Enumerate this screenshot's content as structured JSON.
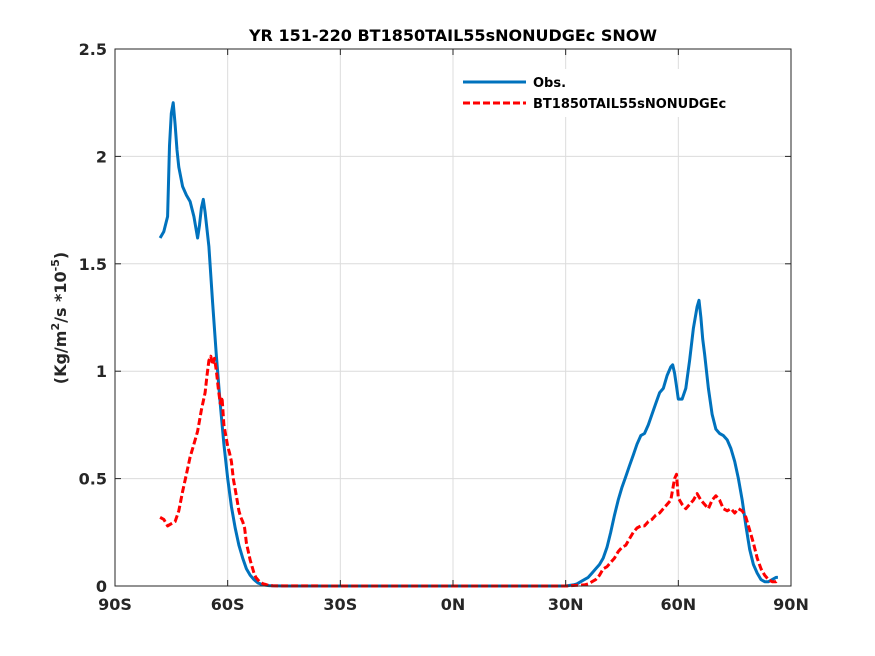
{
  "chart_data": {
    "type": "line",
    "title": "YR 151-220 BT1850TAIL55sNONUDGEc SNOW",
    "ylabel_parts": {
      "prefix": "(Kg/m",
      "sup1": "2",
      "mid": "/s *10",
      "sup2": "-5",
      "suffix": ")"
    },
    "xlabel": "",
    "xlim": [
      -90,
      90
    ],
    "ylim": [
      0,
      2.5
    ],
    "grid": true,
    "legend_position": "top-right",
    "x_ticks": [
      {
        "value": -90,
        "label": "90S"
      },
      {
        "value": -60,
        "label": "60S"
      },
      {
        "value": -30,
        "label": "30S"
      },
      {
        "value": 0,
        "label": "0N"
      },
      {
        "value": 30,
        "label": "30N"
      },
      {
        "value": 60,
        "label": "60N"
      },
      {
        "value": 90,
        "label": "90N"
      }
    ],
    "y_ticks": [
      {
        "value": 0,
        "label": "0"
      },
      {
        "value": 0.5,
        "label": "0.5"
      },
      {
        "value": 1,
        "label": "1"
      },
      {
        "value": 1.5,
        "label": "1.5"
      },
      {
        "value": 2,
        "label": "2"
      },
      {
        "value": 2.5,
        "label": "2.5"
      }
    ],
    "series": [
      {
        "name": "Obs.",
        "color": "#0072BD",
        "style": "solid",
        "x": [
          -78,
          -77,
          -76,
          -75.5,
          -75,
          -74.5,
          -74,
          -73.5,
          -73,
          -72,
          -71,
          -70,
          -69,
          -68,
          -67.5,
          -67,
          -66.5,
          -66,
          -65,
          -64,
          -63,
          -62,
          -61,
          -60,
          -59,
          -58,
          -57,
          -56,
          -55,
          -54,
          -53,
          -52,
          -51,
          -50,
          -49,
          -48,
          -45,
          -30,
          0,
          30,
          32,
          33,
          34,
          35,
          36,
          37,
          38,
          39,
          40,
          41,
          42,
          43,
          44,
          45,
          46,
          47,
          48,
          49,
          50,
          51,
          52,
          53,
          54,
          55,
          56,
          57,
          58,
          58.5,
          59,
          59.5,
          60,
          61,
          62,
          63,
          64,
          65,
          65.5,
          66,
          66.5,
          67,
          68,
          69,
          70,
          71,
          72,
          73,
          74,
          75,
          76,
          77,
          78,
          79,
          80,
          81,
          82,
          83,
          84,
          85,
          86,
          86.5
        ],
        "values": [
          1.62,
          1.65,
          1.72,
          2.05,
          2.2,
          2.25,
          2.15,
          2.03,
          1.95,
          1.86,
          1.82,
          1.79,
          1.72,
          1.62,
          1.68,
          1.76,
          1.8,
          1.74,
          1.58,
          1.32,
          1.07,
          0.85,
          0.66,
          0.5,
          0.37,
          0.27,
          0.19,
          0.13,
          0.08,
          0.05,
          0.03,
          0.015,
          0.008,
          0.004,
          0.002,
          0.001,
          0,
          0,
          0,
          0,
          0.005,
          0.01,
          0.02,
          0.03,
          0.04,
          0.06,
          0.08,
          0.1,
          0.13,
          0.18,
          0.25,
          0.33,
          0.4,
          0.46,
          0.51,
          0.56,
          0.61,
          0.66,
          0.7,
          0.71,
          0.75,
          0.8,
          0.85,
          0.9,
          0.92,
          0.98,
          1.02,
          1.03,
          0.99,
          0.93,
          0.87,
          0.87,
          0.92,
          1.05,
          1.2,
          1.3,
          1.33,
          1.25,
          1.15,
          1.08,
          0.92,
          0.8,
          0.73,
          0.71,
          0.7,
          0.68,
          0.64,
          0.58,
          0.5,
          0.4,
          0.28,
          0.17,
          0.1,
          0.06,
          0.03,
          0.02,
          0.02,
          0.03,
          0.04,
          0.04
        ],
        "note": ""
      },
      {
        "name": "BT1850TAIL55sNONUDGEc",
        "color": "#FF0000",
        "style": "dashed",
        "x": [
          -78,
          -77,
          -76,
          -75,
          -74,
          -73,
          -72,
          -71,
          -70,
          -69,
          -68,
          -67,
          -66,
          -65.5,
          -65,
          -64.5,
          -64,
          -63.5,
          -63,
          -62.5,
          -62,
          -61.5,
          -61,
          -60.5,
          -60,
          -59.5,
          -59,
          -58.5,
          -58,
          -57.5,
          -57,
          -56.5,
          -56,
          -55.5,
          -55,
          -54.5,
          -54,
          -53.5,
          -53,
          -52.5,
          -52,
          -51.5,
          -51,
          -50.5,
          -50,
          -49.5,
          -49,
          -48.5,
          -48,
          -30,
          0,
          30,
          35,
          36,
          37,
          38,
          39,
          40,
          41,
          42,
          43,
          44,
          45,
          46,
          47,
          48,
          49,
          50,
          51,
          52,
          53,
          54,
          55,
          56,
          57,
          58,
          58.5,
          59,
          59.5,
          60,
          61,
          62,
          63,
          64,
          65,
          66,
          67,
          68,
          69,
          70,
          71,
          72,
          73,
          74,
          75,
          76,
          77,
          78,
          79,
          80,
          81,
          82,
          83,
          84,
          85,
          86,
          86.5
        ],
        "values": [
          0.32,
          0.31,
          0.28,
          0.29,
          0.3,
          0.35,
          0.44,
          0.52,
          0.6,
          0.66,
          0.72,
          0.82,
          0.9,
          0.98,
          1.05,
          1.07,
          1.03,
          1.06,
          1.0,
          0.92,
          0.85,
          0.88,
          0.75,
          0.7,
          0.65,
          0.62,
          0.58,
          0.5,
          0.45,
          0.4,
          0.35,
          0.32,
          0.3,
          0.27,
          0.2,
          0.16,
          0.12,
          0.09,
          0.06,
          0.04,
          0.03,
          0.02,
          0.015,
          0.01,
          0.008,
          0.005,
          0.003,
          0.002,
          0.001,
          0,
          0,
          0,
          0.005,
          0.01,
          0.02,
          0.03,
          0.05,
          0.08,
          0.09,
          0.11,
          0.13,
          0.16,
          0.18,
          0.19,
          0.22,
          0.25,
          0.27,
          0.28,
          0.28,
          0.3,
          0.31,
          0.33,
          0.34,
          0.36,
          0.38,
          0.4,
          0.45,
          0.5,
          0.52,
          0.41,
          0.38,
          0.36,
          0.38,
          0.4,
          0.43,
          0.4,
          0.38,
          0.36,
          0.4,
          0.42,
          0.4,
          0.36,
          0.35,
          0.36,
          0.34,
          0.36,
          0.35,
          0.32,
          0.26,
          0.2,
          0.13,
          0.08,
          0.05,
          0.03,
          0.02,
          0.02,
          0.03
        ]
      }
    ]
  }
}
